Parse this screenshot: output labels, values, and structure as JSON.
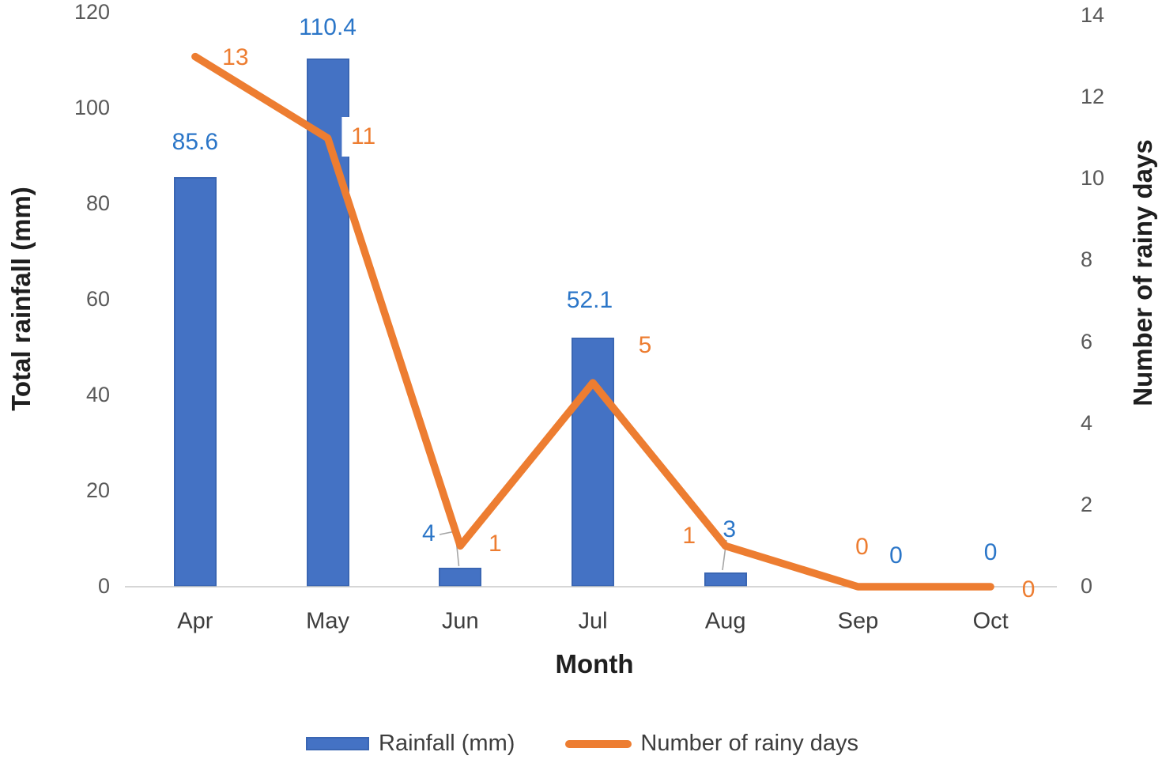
{
  "chart_data": {
    "type": "combo-bar-line",
    "categories": [
      "Apr",
      "May",
      "Jun",
      "Jul",
      "Aug",
      "Sep",
      "Oct"
    ],
    "series": [
      {
        "name": "Rainfall (mm)",
        "type": "bar",
        "axis": "left",
        "color": "#4472C4",
        "values": [
          85.6,
          110.4,
          4,
          52.1,
          3,
          0,
          0
        ]
      },
      {
        "name": "Number of rainy days",
        "type": "line",
        "axis": "right",
        "color": "#ED7D31",
        "values": [
          13,
          11,
          1,
          5,
          1,
          0,
          0
        ]
      }
    ],
    "xlabel": "Month",
    "ylabel_left": "Total rainfall (mm)",
    "ylabel_right": "Number of rainy days",
    "left_axis": {
      "min": 0,
      "max": 120,
      "step": 20,
      "ticks": [
        "0",
        "20",
        "40",
        "60",
        "80",
        "100",
        "120"
      ]
    },
    "right_axis": {
      "min": 0,
      "max": 14,
      "step": 2,
      "ticks": [
        "0",
        "2",
        "4",
        "6",
        "8",
        "10",
        "12",
        "14"
      ]
    },
    "grid": false,
    "legend_position": "bottom",
    "legend": [
      {
        "label": "Rainfall (mm)",
        "swatch": "bar",
        "color": "#4472C4"
      },
      {
        "label": "Number of rainy days",
        "swatch": "line",
        "color": "#ED7D31"
      }
    ],
    "colors": {
      "bar_fill": "#4472C4",
      "line_stroke": "#ED7D31",
      "rainfall_label": "#2B76C8",
      "rainy_days_label": "#ED7D31",
      "axis_line": "#C8C8C8",
      "background": "#FFFFFF"
    }
  }
}
